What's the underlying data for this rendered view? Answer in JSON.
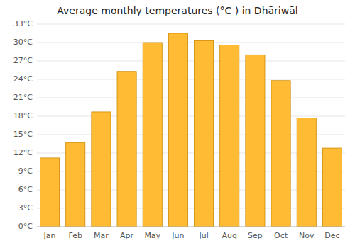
{
  "chart_data": {
    "type": "bar",
    "title": "Average monthly temperatures (°C ) in Dhāriwāl",
    "categories": [
      "Jan",
      "Feb",
      "Mar",
      "Apr",
      "May",
      "Jun",
      "Jul",
      "Aug",
      "Sep",
      "Oct",
      "Nov",
      "Dec"
    ],
    "values": [
      11.2,
      13.7,
      18.7,
      25.3,
      30.0,
      31.5,
      30.3,
      29.6,
      28.0,
      23.8,
      17.7,
      12.8
    ],
    "color": "#FFBB33",
    "ylim": [
      0,
      33
    ],
    "yticks": [
      {
        "value": 0,
        "label": "0°C"
      },
      {
        "value": 3,
        "label": "3°C"
      },
      {
        "value": 6,
        "label": "6°C"
      },
      {
        "value": 9,
        "label": "9°C"
      },
      {
        "value": 12,
        "label": "12°C"
      },
      {
        "value": 15,
        "label": "15°C"
      },
      {
        "value": 18,
        "label": "18°C"
      },
      {
        "value": 21,
        "label": "21°C"
      },
      {
        "value": 24,
        "label": "24°C"
      },
      {
        "value": 27,
        "label": "27°C"
      },
      {
        "value": 30,
        "label": "30°C"
      },
      {
        "value": 33,
        "label": "33°C"
      }
    ],
    "grid": true
  }
}
